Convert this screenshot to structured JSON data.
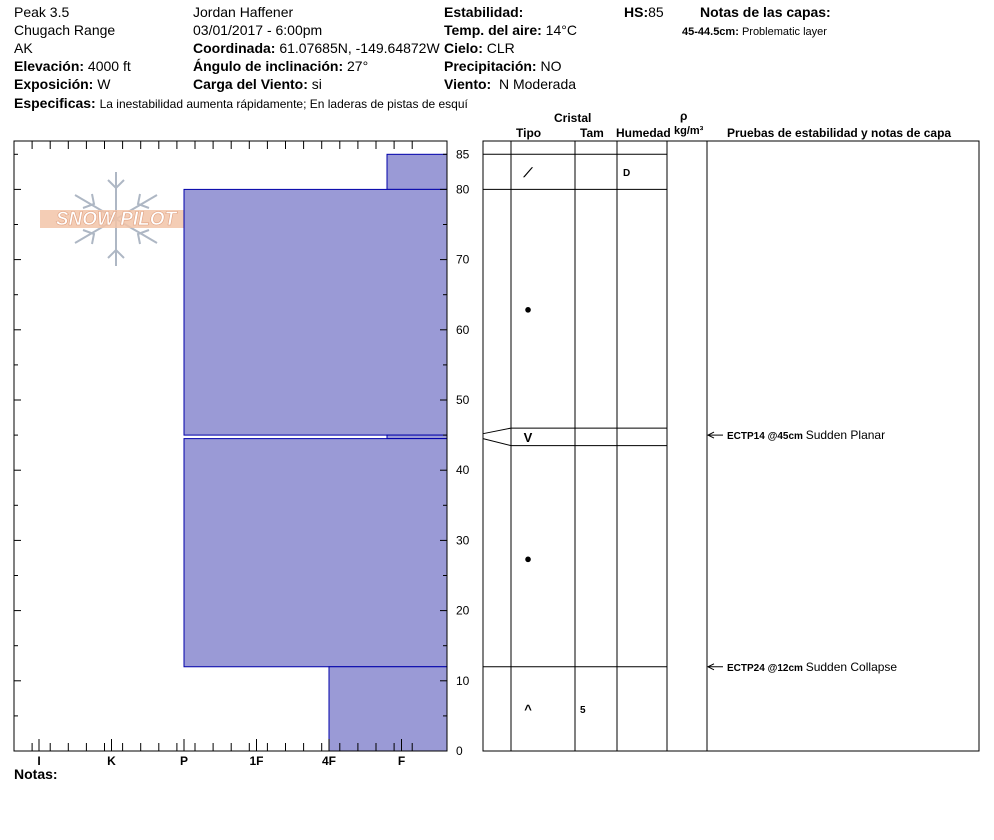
{
  "header": {
    "location": "Peak 3.5",
    "range": "Chugach Range",
    "state": "AK",
    "elevation_label": "Elevación:",
    "elevation": "4000 ft",
    "aspect_label": "Exposición:",
    "aspect": "W",
    "observer": "Jordan Haffener",
    "datetime": "03/01/2017 - 6:00pm",
    "coord_label": "Coordinada:",
    "coord": "61.07685N, -149.64872W",
    "slope_label": "Ángulo de inclinación:",
    "slope": "27°",
    "windload_label": "Carga del Viento:",
    "windload": "si",
    "stability_label": "Estabilidad:",
    "stability": "",
    "airtemp_label": "Temp. del aire:",
    "airtemp": "14°C",
    "sky_label": "Cielo:",
    "sky": "CLR",
    "precip_label": "Precipitación:",
    "precip": "NO",
    "wind_label": "Viento:",
    "wind": "N Moderada",
    "hs_label": "HS:",
    "hs": "85",
    "layer_notes_label": "Notas de las capas:",
    "layer_note_range": "45-44.5cm:",
    "layer_note_text": "Problematic layer",
    "specifics_label": "Especificas:",
    "specifics": "La inestabilidad aumenta rápidamente;  En laderas de pistas de esquí"
  },
  "logo": {
    "text": "SNOW PILOT"
  },
  "columns": {
    "cristal": "Cristal",
    "tipo": "Tipo",
    "tam": "Tam",
    "humedad": "Humedad",
    "rho": "ρ",
    "density_unit": "kg/m³",
    "tests_header": "Pruebas de estabilidad y notas de capa"
  },
  "notes_label": "Notas:",
  "chart_data": {
    "type": "area",
    "title": "",
    "xlabel": "Hardness",
    "ylabel": "Height (cm)",
    "hardness_ticks": [
      "I",
      "K",
      "P",
      "1F",
      "4F",
      "F"
    ],
    "height_ticks": [
      "0",
      "10",
      "20",
      "30",
      "40",
      "50",
      "60",
      "70",
      "80",
      "85"
    ],
    "ylim": [
      0,
      85
    ],
    "fill_color": "#9a9ad6",
    "edge_color": "#0000aa",
    "layers": [
      {
        "top": 85,
        "bottom": 80,
        "hardness": "F",
        "hardness_value": 5.8
      },
      {
        "top": 80,
        "bottom": 45,
        "hardness": "P",
        "hardness_value": 3.0
      },
      {
        "top": 45,
        "bottom": 44.5,
        "hardness": "F",
        "hardness_value": 5.8
      },
      {
        "top": 44.5,
        "bottom": 12,
        "hardness": "P",
        "hardness_value": 3.0
      },
      {
        "top": 12,
        "bottom": 0,
        "hardness": "4F",
        "hardness_value": 5.0
      }
    ],
    "layer_boundaries": [
      85,
      80,
      46,
      43.5,
      12
    ],
    "crystals": [
      {
        "height": 82.5,
        "symbol": "⟋",
        "moisture": "D",
        "size": ""
      },
      {
        "height": 63,
        "symbol": "●",
        "moisture": "",
        "size": ""
      },
      {
        "height": 44.75,
        "symbol": "V",
        "moisture": "",
        "size": ""
      },
      {
        "height": 27.5,
        "symbol": "●",
        "moisture": "",
        "size": ""
      },
      {
        "height": 6,
        "symbol": "^",
        "moisture": "",
        "size": "5"
      }
    ],
    "tests": [
      {
        "height": 45,
        "code": "ECTP14 @45cm",
        "desc": "Sudden Planar"
      },
      {
        "height": 12,
        "code": "ECTP24 @12cm",
        "desc": "Sudden Collapse"
      }
    ]
  }
}
